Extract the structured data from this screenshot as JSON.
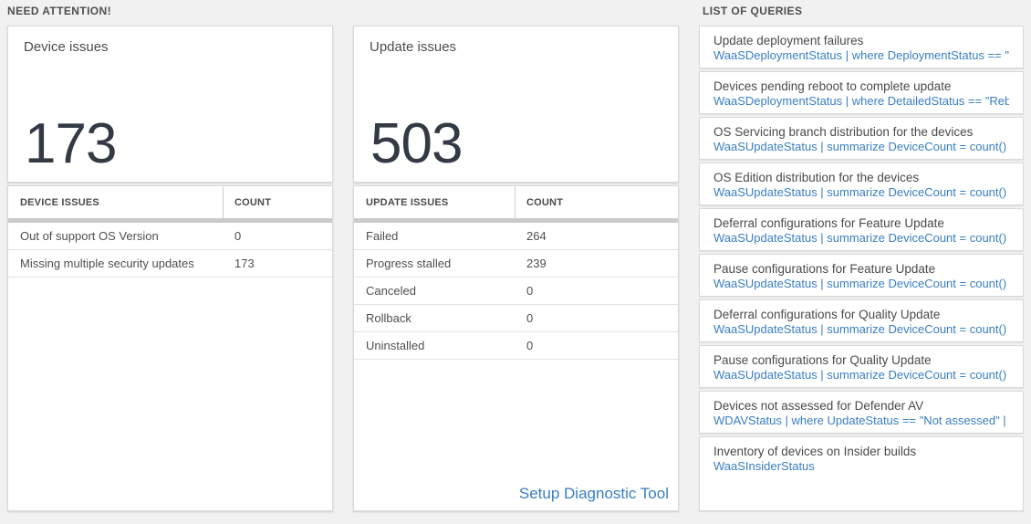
{
  "sections": {
    "need_attention": "NEED ATTENTION!",
    "list_of_queries": "LIST OF QUERIES"
  },
  "device_panel": {
    "title": "Device issues",
    "big_number": "173",
    "table": {
      "headers": [
        "DEVICE ISSUES",
        "COUNT"
      ],
      "rows": [
        {
          "label": "Out of support OS Version",
          "count": "0"
        },
        {
          "label": "Missing multiple security updates",
          "count": "173"
        }
      ]
    }
  },
  "update_panel": {
    "title": "Update issues",
    "big_number": "503",
    "table": {
      "headers": [
        "UPDATE ISSUES",
        "COUNT"
      ],
      "rows": [
        {
          "label": "Failed",
          "count": "264"
        },
        {
          "label": "Progress stalled",
          "count": "239"
        },
        {
          "label": "Canceled",
          "count": "0"
        },
        {
          "label": "Rollback",
          "count": "0"
        },
        {
          "label": "Uninstalled",
          "count": "0"
        }
      ]
    },
    "link": "Setup Diagnostic Tool"
  },
  "queries": {
    "items": [
      {
        "title": "Update deployment failures",
        "query": "WaaSDeploymentStatus | where DeploymentStatus == \"Failed\" |..."
      },
      {
        "title": "Devices pending reboot to complete update",
        "query": "WaaSDeploymentStatus | where DetailedStatus == \"Reboot pend..."
      },
      {
        "title": "OS Servicing branch distribution for the devices",
        "query": "WaaSUpdateStatus | summarize DeviceCount = count() by OSSer..."
      },
      {
        "title": "OS Edition distribution for the devices",
        "query": "WaaSUpdateStatus | summarize DeviceCount = count() by OSEdit..."
      },
      {
        "title": "Deferral configurations for Feature Update",
        "query": "WaaSUpdateStatus | summarize DeviceCount = count() by Featur..."
      },
      {
        "title": "Pause configurations for Feature Update",
        "query": "WaaSUpdateStatus | summarize DeviceCount = count() by Featur..."
      },
      {
        "title": "Deferral configurations for Quality Update",
        "query": "WaaSUpdateStatus | summarize DeviceCount = count() by Qualit..."
      },
      {
        "title": "Pause configurations for Quality Update",
        "query": "WaaSUpdateStatus | summarize DeviceCount = count() by Qualit..."
      },
      {
        "title": "Devices not assessed for Defender AV",
        "query": "WDAVStatus | where UpdateStatus == \"Not assessed\" | render ta..."
      },
      {
        "title": "Inventory of devices on Insider builds",
        "query": "WaaSInsiderStatus"
      }
    ]
  },
  "colors": {
    "background": "#f1f1f1",
    "card_border": "#d9d9d9",
    "accent_blue": "#3a7ec2",
    "text_dark": "#4a4a4a",
    "big_number": "#333a44",
    "thick_divider": "#cbcbcb"
  }
}
